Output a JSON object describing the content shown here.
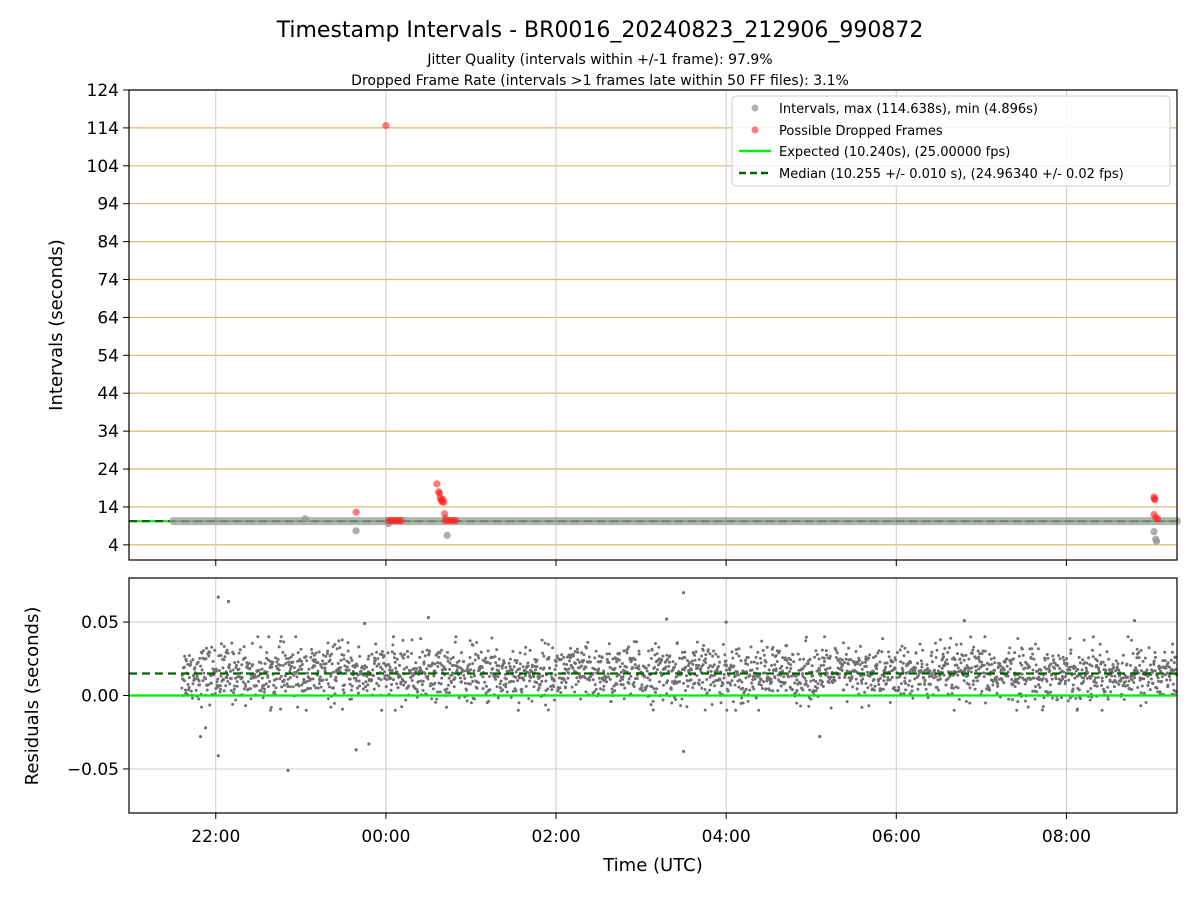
{
  "figure": {
    "title": "Timestamp Intervals - BR0016_20240823_212906_990872",
    "subtitle_1": "Jitter Quality (intervals within +/-1 frame): 97.9%",
    "subtitle_2": "Dropped Frame Rate (intervals >1 frames late within 50 FF files): 3.1%",
    "x_axis_label": "Time (UTC)"
  },
  "colors": {
    "intervals": "#999999",
    "dropped": "#ff2020",
    "expected": "#00ee00",
    "median": "#006400",
    "grid_top": "#d4bb6e",
    "grid": "#cccccc",
    "residual_points": "#707070"
  },
  "chart_data": [
    {
      "type": "scatter",
      "name": "intervals-panel",
      "ylabel": "Intervals (seconds)",
      "xlim_hours": [
        20.98,
        33.3
      ],
      "ylim": [
        0,
        124
      ],
      "y_ticks": [
        4,
        14,
        24,
        34,
        44,
        54,
        64,
        74,
        84,
        94,
        104,
        114,
        124
      ],
      "x_ticks": [
        "22:00",
        "00:00",
        "02:00",
        "04:00",
        "06:00",
        "08:00"
      ],
      "x_tick_hours": [
        22,
        24,
        26,
        28,
        30,
        32
      ],
      "grid": "horizontal grid at every y tick, vertical grid at every x tick",
      "legend_position": "top-right",
      "legend": [
        "Intervals, max (114.638s), min (4.896s)",
        "Possible Dropped Frames",
        "Expected (10.240s), (25.00000 fps)",
        "Median (10.255 +/- 0.010 s), (24.96340 +/- 0.02 fps)"
      ],
      "expected_interval": 10.24,
      "median_interval": 10.255,
      "intervals_span_hours": [
        21.5,
        33.3
      ],
      "interval_outliers": [
        {
          "x": 23.05,
          "y": 10.9
        },
        {
          "x": 23.65,
          "y": 7.7
        },
        {
          "x": 24.03,
          "y": 9.6
        },
        {
          "x": 24.7,
          "y": 11.0
        },
        {
          "x": 24.72,
          "y": 6.5
        },
        {
          "x": 33.03,
          "y": 7.5
        },
        {
          "x": 33.05,
          "y": 5.5
        },
        {
          "x": 33.06,
          "y": 4.9
        }
      ],
      "dropped_frames": [
        {
          "x": 24.0,
          "y": 114.638
        },
        {
          "x": 23.65,
          "y": 12.6
        },
        {
          "x": 24.03,
          "y": 10.4
        },
        {
          "x": 24.06,
          "y": 10.4
        },
        {
          "x": 24.09,
          "y": 10.4
        },
        {
          "x": 24.12,
          "y": 10.4
        },
        {
          "x": 24.15,
          "y": 10.4
        },
        {
          "x": 24.18,
          "y": 10.4
        },
        {
          "x": 24.6,
          "y": 20.1
        },
        {
          "x": 24.62,
          "y": 18.0
        },
        {
          "x": 24.63,
          "y": 17.6
        },
        {
          "x": 24.64,
          "y": 16.4
        },
        {
          "x": 24.65,
          "y": 15.8
        },
        {
          "x": 24.66,
          "y": 15.4
        },
        {
          "x": 24.67,
          "y": 16.0
        },
        {
          "x": 24.68,
          "y": 15.2
        },
        {
          "x": 24.69,
          "y": 12.2
        },
        {
          "x": 24.7,
          "y": 10.4
        },
        {
          "x": 24.73,
          "y": 10.4
        },
        {
          "x": 24.76,
          "y": 10.4
        },
        {
          "x": 24.79,
          "y": 10.4
        },
        {
          "x": 24.82,
          "y": 10.4
        },
        {
          "x": 33.03,
          "y": 16.6
        },
        {
          "x": 33.04,
          "y": 15.9
        },
        {
          "x": 33.035,
          "y": 16.2
        },
        {
          "x": 33.03,
          "y": 12.0
        },
        {
          "x": 33.05,
          "y": 11.2
        },
        {
          "x": 33.07,
          "y": 10.8
        }
      ]
    },
    {
      "type": "scatter",
      "name": "residuals-panel",
      "ylabel": "Residuals (seconds)",
      "xlim_hours": [
        20.98,
        33.3
      ],
      "ylim": [
        -0.08,
        0.08
      ],
      "y_ticks": [
        -0.05,
        0.0,
        0.05
      ],
      "y_tick_labels": [
        "−0.05",
        "0.00",
        "0.05"
      ],
      "x_ticks": [
        "22:00",
        "00:00",
        "02:00",
        "04:00",
        "06:00",
        "08:00"
      ],
      "x_tick_hours": [
        22,
        24,
        26,
        28,
        30,
        32
      ],
      "grid": "horizontal grid at every y tick, vertical grid at every x tick",
      "expected_residual": 0.0,
      "median_residual": 0.015,
      "residual_band": {
        "x_range": [
          21.6,
          33.3
        ],
        "center": 0.015,
        "typical_min": -0.01,
        "typical_max": 0.04
      },
      "residual_outliers": [
        {
          "x": 22.03,
          "y": 0.067
        },
        {
          "x": 22.15,
          "y": 0.064
        },
        {
          "x": 23.75,
          "y": 0.049
        },
        {
          "x": 24.5,
          "y": 0.053
        },
        {
          "x": 27.3,
          "y": 0.052
        },
        {
          "x": 27.5,
          "y": 0.07
        },
        {
          "x": 28.0,
          "y": 0.05
        },
        {
          "x": 30.8,
          "y": 0.051
        },
        {
          "x": 32.8,
          "y": 0.051
        },
        {
          "x": 22.03,
          "y": -0.041
        },
        {
          "x": 22.85,
          "y": -0.051
        },
        {
          "x": 23.65,
          "y": -0.037
        },
        {
          "x": 23.8,
          "y": -0.033
        },
        {
          "x": 27.5,
          "y": -0.038
        },
        {
          "x": 29.1,
          "y": -0.028
        },
        {
          "x": 21.88,
          "y": -0.022
        },
        {
          "x": 21.82,
          "y": -0.028
        }
      ]
    }
  ]
}
